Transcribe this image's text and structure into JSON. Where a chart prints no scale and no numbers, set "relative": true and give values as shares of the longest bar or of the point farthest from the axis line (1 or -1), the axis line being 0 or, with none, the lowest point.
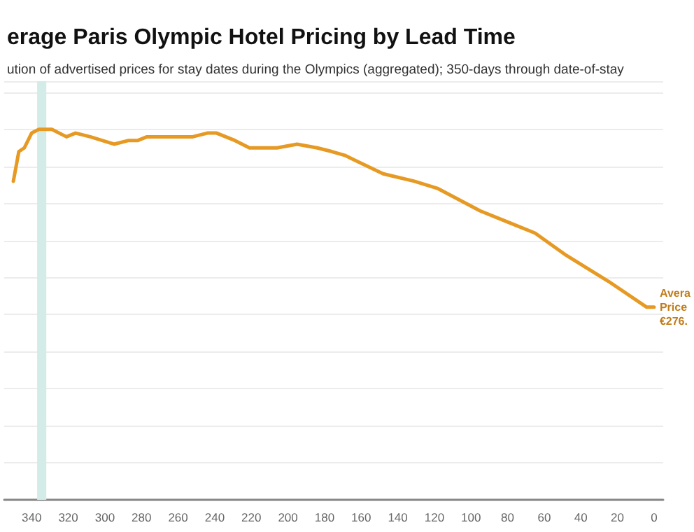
{
  "chart_data": {
    "type": "line",
    "title": "erage Paris Olympic Hotel Pricing by Lead Time",
    "subtitle": "ution of advertised prices for stay dates during the Olympics (aggregated); 350-days through date-of-stay",
    "relative": true,
    "grid": "y",
    "marker": "none",
    "line_style": "solid",
    "x": [
      350,
      347,
      344,
      340,
      336,
      329,
      321,
      316,
      308,
      295,
      287,
      282,
      277,
      252,
      244,
      239,
      229,
      221,
      216,
      206,
      195,
      184,
      176,
      169,
      148,
      131,
      118,
      95,
      80,
      65,
      48,
      25,
      4,
      1,
      0
    ],
    "series": [
      {
        "color": "#e69a24",
        "values": [
          0.86,
          0.94,
          0.95,
          0.99,
          1.0,
          1.0,
          0.98,
          0.99,
          0.98,
          0.96,
          0.97,
          0.97,
          0.98,
          0.98,
          0.99,
          0.99,
          0.97,
          0.95,
          0.95,
          0.95,
          0.96,
          0.95,
          0.94,
          0.93,
          0.88,
          0.86,
          0.84,
          0.78,
          0.75,
          0.72,
          0.66,
          0.59,
          0.52,
          0.52,
          0.52
        ]
      }
    ],
    "xlim": [
      355,
      -5
    ],
    "xticks": [
      340,
      320,
      300,
      280,
      260,
      240,
      220,
      200,
      180,
      160,
      140,
      120,
      100,
      80,
      60,
      40,
      20,
      0
    ],
    "bands": [
      {
        "axis": "x",
        "from": 337,
        "to": 332,
        "color": "#d4ece7"
      }
    ],
    "annotations": [
      {
        "text": "Avera\nPrice\n€276.",
        "x": 0,
        "y": 0.52
      }
    ]
  }
}
